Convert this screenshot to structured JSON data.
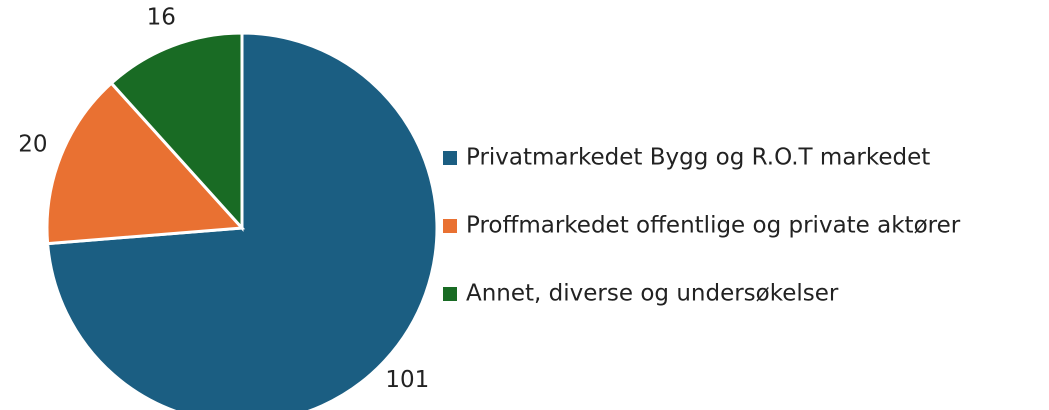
{
  "chart_data": {
    "type": "pie",
    "categories": [
      "Privatmarkedet Bygg og R.O.T markedet",
      "Proffmarkedet offentlige og private aktører",
      "Annet, diverse og undersøkelser"
    ],
    "values": [
      101,
      20,
      16
    ],
    "colors": [
      "#1b5e82",
      "#e97132",
      "#196b24"
    ],
    "legend": "right"
  }
}
